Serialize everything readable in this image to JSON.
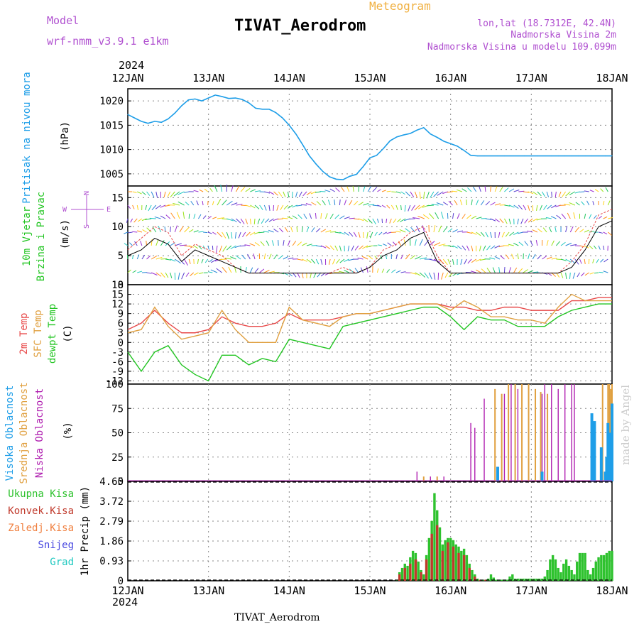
{
  "header": {
    "meteogram_title": "Meteogram",
    "model_label": "Model",
    "model_name": "wrf-nmm_v3.9.1 e1km",
    "station": "TIVAT_Aerodrom",
    "lonlat": "lon,lat (18.7312E, 42.4N)",
    "height": "Nadmorska Visina 2m",
    "model_height": "Nadmorska Visina u modelu 109.099m",
    "year_top": "2024",
    "year_bottom": "2024",
    "footer_station": "TIVAT_Aerodrom",
    "watermark": "made by Angel"
  },
  "colors": {
    "pressure": "#1e9ee8",
    "temp2m": "#e84a4a",
    "sfc": "#e0a040",
    "dewpt": "#22c522",
    "high_cloud": "#1e9ee8",
    "mid_cloud": "#e0a040",
    "low_cloud": "#b020b0",
    "precip_total": "#2ec22e",
    "precip_conv": "#c0392b",
    "purple_text": "#b050d0",
    "orange_text": "#f0b040"
  },
  "x_axis": {
    "dates": [
      "12JAN",
      "13JAN",
      "14JAN",
      "15JAN",
      "16JAN",
      "17JAN",
      "18JAN"
    ]
  },
  "chart_data": [
    {
      "type": "line",
      "name": "pressure",
      "ylabel_main": "Pritisak na nivou mora",
      "ylabel_unit": "(hPa)",
      "yticks": [
        1005,
        1010,
        1015,
        1020
      ],
      "ylim": [
        1002.5,
        1022.5
      ],
      "grid": true,
      "x": [
        0,
        0.5,
        1,
        1.5,
        2,
        2.5,
        3,
        3.5,
        4,
        4.5,
        5,
        5.5,
        6,
        6.5,
        7,
        7.5,
        8,
        8.5,
        9,
        9.5,
        10,
        10.5,
        11,
        11.5,
        12,
        12.5,
        13,
        13.5,
        14,
        14.5,
        15,
        15.5,
        16,
        16.5,
        17,
        17.5,
        18,
        18.5,
        19,
        19.5,
        20,
        20.5,
        21,
        21.5,
        22,
        22.5,
        23,
        23.5,
        24,
        24.5,
        25,
        25.5,
        26,
        26.5,
        27,
        27.5,
        28,
        28.5,
        29,
        29.5,
        30,
        30.5,
        31,
        31.5,
        32,
        32.5,
        33,
        33.5,
        34,
        34.5,
        35,
        35.5,
        36
      ],
      "series": [
        {
          "values": [
            1017.2,
            1016.5,
            1015.8,
            1015.4,
            1015.8,
            1015.6,
            1016.3,
            1017.5,
            1019.0,
            1020.2,
            1020.4,
            1020.0,
            1020.6,
            1021.2,
            1020.9,
            1020.5,
            1020.6,
            1020.3,
            1019.6,
            1018.5,
            1018.3,
            1018.3,
            1017.6,
            1016.5,
            1015.0,
            1013.2,
            1011.0,
            1008.7,
            1007.0,
            1005.5,
            1004.4,
            1003.9,
            1003.8,
            1004.5,
            1004.9,
            1006.5,
            1008.3,
            1008.8,
            1010.2,
            1011.8,
            1012.6,
            1013.0,
            1013.3,
            1014.0,
            1014.5,
            1013.2,
            1012.5,
            1011.7,
            1011.2,
            1010.7,
            1009.8,
            1008.8,
            1008.7,
            1008.7,
            1008.7,
            1008.7,
            1008.7,
            1008.7,
            1008.7,
            1008.7,
            1008.7,
            1008.7,
            1008.7,
            1008.7,
            1008.7,
            1008.7,
            1008.7,
            1008.7,
            1008.7,
            1008.7,
            1008.7,
            1008.7,
            1008.7
          ]
        }
      ]
    },
    {
      "type": "line",
      "name": "wind",
      "ylabel_main": "10m Vjetar",
      "ylabel_second": "Brzina i Pravac",
      "ylabel_unit": "(m/s)",
      "compass": {
        "n": "N",
        "s": "S",
        "e": "E",
        "w": "W"
      },
      "yticks": [
        0,
        5,
        10,
        15
      ],
      "ylim": [
        0,
        17
      ],
      "grid": true,
      "x": [
        0,
        1,
        2,
        3,
        4,
        5,
        6,
        7,
        8,
        9,
        10,
        11,
        12,
        13,
        14,
        15,
        16,
        17,
        18,
        19,
        20,
        21,
        22,
        23,
        24,
        25,
        26,
        27,
        28,
        29,
        30,
        31,
        32,
        33,
        34,
        35,
        36
      ],
      "series": [
        {
          "name": "speed",
          "values": [
            5,
            6,
            8,
            7,
            4,
            6,
            5,
            4,
            3,
            2,
            2,
            2,
            2,
            2,
            2,
            2,
            2,
            2,
            3,
            5,
            6,
            8,
            9,
            4,
            2,
            2,
            2,
            2,
            2,
            2,
            2,
            2,
            2,
            3,
            6,
            10,
            11
          ]
        },
        {
          "name": "gust",
          "values": [
            6,
            8,
            10,
            9,
            5,
            7,
            6,
            5,
            3,
            2,
            2,
            2,
            2,
            2,
            2,
            2,
            3,
            2,
            3,
            6,
            7,
            9,
            10,
            5,
            2,
            2,
            2,
            2,
            2,
            2,
            2,
            2,
            2,
            4,
            7,
            12,
            13
          ]
        }
      ]
    },
    {
      "type": "line",
      "name": "temperature",
      "ylabel_lines": [
        "2m Temp",
        "SFC Temp",
        "dewpt Temp"
      ],
      "ylabel_unit": "(C)",
      "yticks": [
        -12,
        -9,
        -6,
        -3,
        0,
        3,
        6,
        9,
        12,
        15,
        18
      ],
      "ylim": [
        -13,
        18
      ],
      "grid": true,
      "x": [
        0,
        1,
        2,
        3,
        4,
        5,
        6,
        7,
        8,
        9,
        10,
        11,
        12,
        13,
        14,
        15,
        16,
        17,
        18,
        19,
        20,
        21,
        22,
        23,
        24,
        25,
        26,
        27,
        28,
        29,
        30,
        31,
        32,
        33,
        34,
        35,
        36
      ],
      "series": [
        {
          "name": "2m Temp",
          "values": [
            4,
            6,
            10,
            6,
            3,
            3,
            4,
            8,
            6,
            5,
            5,
            6,
            9,
            7,
            7,
            7,
            8,
            9,
            9,
            10,
            11,
            12,
            12,
            12,
            11,
            11,
            10,
            10,
            11,
            11,
            10,
            10,
            10,
            13,
            13,
            14,
            14
          ]
        },
        {
          "name": "SFC Temp",
          "values": [
            3,
            4,
            11,
            5,
            1,
            2,
            3,
            10,
            4,
            0,
            0,
            0,
            11,
            7,
            6,
            5,
            8,
            9,
            9,
            10,
            11,
            12,
            12,
            12,
            10,
            13,
            11,
            8,
            8,
            7,
            7,
            6,
            11,
            15,
            13,
            13,
            13
          ]
        },
        {
          "name": "dewpt Temp",
          "values": [
            -3,
            -9,
            -3,
            -1,
            -7,
            -10,
            -12,
            -4,
            -4,
            -7,
            -5,
            -6,
            1,
            0,
            -1,
            -2,
            5,
            6,
            7,
            8,
            9,
            10,
            11,
            11,
            8,
            4,
            8,
            7,
            7,
            5,
            5,
            5,
            8,
            10,
            11,
            12,
            12
          ]
        }
      ]
    },
    {
      "type": "bar",
      "name": "cloud",
      "ylabel_lines": [
        "Visoka Oblacnost",
        "Srednja Oblacnost",
        "Niska Oblacnost"
      ],
      "ylabel_unit": "(%)",
      "yticks": [
        0,
        25,
        50,
        75,
        100
      ],
      "ylim": [
        0,
        100
      ],
      "grid": true,
      "series": [
        {
          "name": "Niska",
          "x": [
            21.5,
            22.5,
            23.5,
            25.5,
            25.8,
            26.5,
            28.0,
            28.5,
            29.0,
            30.8,
            31.0,
            31.5,
            32.0,
            32.5,
            33.0,
            33.2
          ],
          "values": [
            10,
            5,
            5,
            60,
            55,
            85,
            90,
            100,
            95,
            90,
            100,
            100,
            95,
            100,
            100,
            100
          ]
        },
        {
          "name": "Srednja",
          "x": [
            22.0,
            23.0,
            27.3,
            27.8,
            28.3,
            28.8,
            29.3,
            29.8,
            30.3,
            30.7,
            31.2,
            35.3,
            35.7,
            35.8,
            35.9,
            36.0
          ],
          "values": [
            5,
            5,
            95,
            90,
            100,
            100,
            100,
            100,
            95,
            92,
            90,
            100,
            100,
            100,
            95,
            100
          ]
        },
        {
          "name": "Visoka",
          "x": [
            27.5,
            30.8,
            34.5,
            34.7,
            35.2,
            35.5,
            35.6,
            35.7,
            35.8,
            36.0
          ],
          "values": [
            15,
            10,
            70,
            62,
            35,
            10,
            25,
            60,
            50,
            80
          ]
        }
      ]
    },
    {
      "type": "bar",
      "name": "precip",
      "ylabel_unit": "1hr Precip (mm)",
      "legend": [
        "Ukupna Kisa",
        "Konvek.Kisa",
        "Zaledj.Kisa",
        "Snijeg",
        "Grad"
      ],
      "yticks": [
        0,
        0.93,
        1.86,
        2.79,
        3.72,
        4.65
      ],
      "ylim": [
        0,
        4.65
      ],
      "grid": true,
      "series": [
        {
          "name": "Ukupna Kisa",
          "x": [
            20.0,
            20.2,
            20.4,
            20.6,
            20.8,
            21.0,
            21.2,
            21.4,
            21.6,
            21.8,
            22.0,
            22.2,
            22.4,
            22.6,
            22.8,
            23.0,
            23.2,
            23.4,
            23.6,
            23.8,
            24.0,
            24.2,
            24.4,
            24.6,
            24.8,
            25.0,
            25.2,
            25.4,
            25.6,
            25.8,
            26.0,
            26.2,
            26.4,
            26.6,
            26.8,
            27.0,
            27.2,
            27.4,
            27.6,
            27.8,
            28.0,
            28.2,
            28.4,
            28.6,
            28.8,
            29.0,
            29.2,
            29.4,
            29.6,
            29.8,
            30.0,
            30.2,
            30.4,
            30.6,
            30.8,
            31.0,
            31.2,
            31.4,
            31.6,
            31.8,
            32.0,
            32.2,
            32.4,
            32.6,
            32.8,
            33.0,
            33.2,
            33.4,
            33.6,
            33.8,
            34.0,
            34.2,
            34.4,
            34.6,
            34.8,
            35.0,
            35.2,
            35.4,
            35.6,
            35.8,
            36.0
          ],
          "values": [
            0.05,
            0.4,
            0.6,
            0.8,
            0.7,
            1.1,
            1.4,
            1.3,
            0.9,
            0.5,
            0.3,
            1.2,
            2.0,
            2.8,
            4.1,
            3.3,
            2.5,
            1.7,
            1.9,
            2.0,
            2.0,
            1.9,
            1.7,
            1.6,
            1.4,
            1.5,
            1.2,
            0.8,
            0.5,
            0.3,
            0.1,
            0.05,
            0.05,
            0.05,
            0.1,
            0.3,
            0.15,
            0.05,
            0.05,
            0.05,
            0.05,
            0.05,
            0.2,
            0.3,
            0.1,
            0.1,
            0.1,
            0.1,
            0.1,
            0.1,
            0.1,
            0.1,
            0.1,
            0.1,
            0.1,
            0.2,
            0.5,
            1.0,
            1.2,
            1.0,
            0.6,
            0.4,
            0.8,
            1.0,
            0.7,
            0.5,
            0.3,
            0.9,
            1.3,
            1.3,
            1.3,
            0.5,
            0.3,
            0.6,
            0.9,
            1.1,
            1.2,
            1.2,
            1.3,
            1.4,
            1.4
          ]
        },
        {
          "name": "Konvek.Kisa",
          "x": [
            20.2,
            20.6,
            21.0,
            21.4,
            21.8,
            22.2,
            22.6,
            23.0,
            23.4,
            23.8,
            24.2,
            24.6,
            25.0,
            25.4,
            25.8,
            26.2,
            26.6
          ],
          "values": [
            0.3,
            0.6,
            0.8,
            1.0,
            0.4,
            1.0,
            2.2,
            2.6,
            1.4,
            1.8,
            1.6,
            1.3,
            1.2,
            0.6,
            0.2,
            0.05,
            0.05
          ]
        }
      ]
    }
  ]
}
